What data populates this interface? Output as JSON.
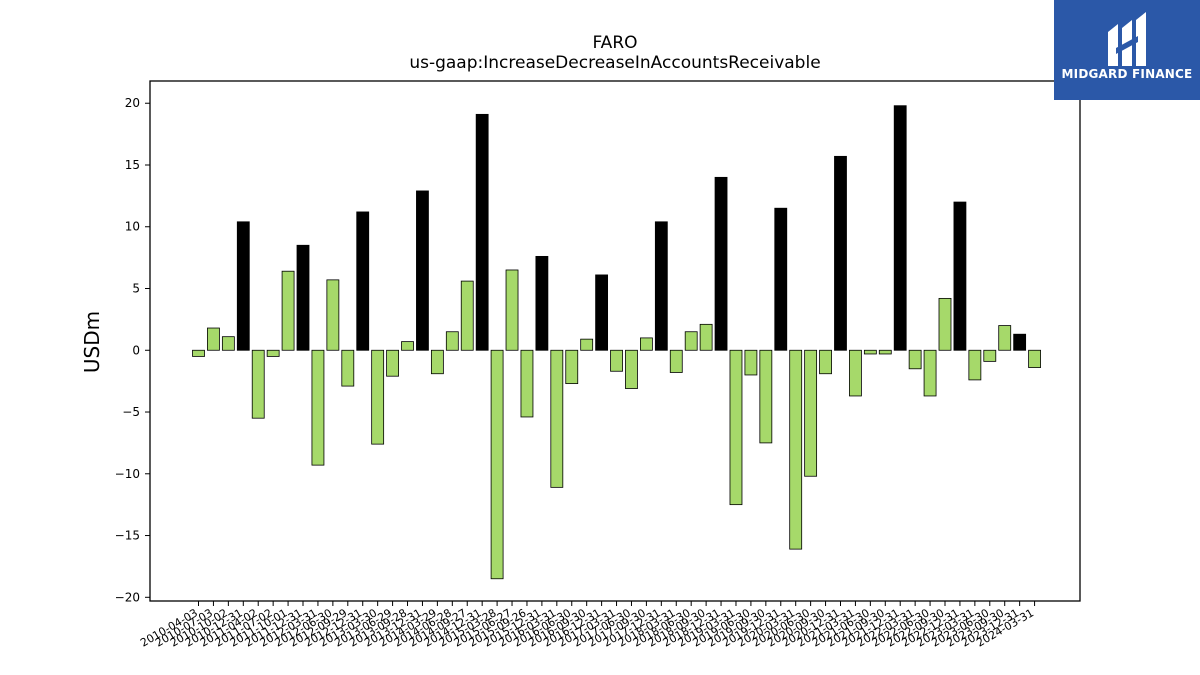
{
  "chart_data": {
    "type": "bar",
    "title": "FARO",
    "subtitle": "us-gaap:IncreaseDecreaseInAccountsReceivable",
    "ylabel": "USDm",
    "ylim": [
      -20.3,
      21.8
    ],
    "yticks": [
      -20,
      -15,
      -10,
      -5,
      0,
      5,
      10,
      15,
      20
    ],
    "grid": false,
    "colors": {
      "quarter": "#a6d96a",
      "annual": "#000000",
      "edge": "#000000"
    },
    "categories": [
      "2010-04-03",
      "2010-07-03",
      "2010-10-02",
      "2010-12-31",
      "2011-04-02",
      "2011-07-02",
      "2011-10-01",
      "2011-12-31",
      "2012-03-31",
      "2012-06-30",
      "2012-09-29",
      "2012-12-31",
      "2013-03-30",
      "2013-06-29",
      "2013-09-28",
      "2013-12-31",
      "2014-03-29",
      "2014-06-28",
      "2014-09-27",
      "2014-12-31",
      "2015-03-28",
      "2015-06-27",
      "2015-09-26",
      "2015-12-31",
      "2016-03-31",
      "2016-06-30",
      "2016-09-30",
      "2016-12-31",
      "2017-03-31",
      "2017-06-30",
      "2017-09-30",
      "2017-12-31",
      "2018-03-31",
      "2018-06-30",
      "2018-09-30",
      "2018-12-31",
      "2019-03-31",
      "2019-06-30",
      "2019-09-30",
      "2019-12-31",
      "2020-03-31",
      "2020-06-30",
      "2020-09-30",
      "2020-12-31",
      "2021-03-31",
      "2021-06-30",
      "2021-09-30",
      "2021-12-31",
      "2022-03-31",
      "2022-06-30",
      "2022-09-30",
      "2022-12-31",
      "2023-03-31",
      "2023-06-30",
      "2023-09-30",
      "2023-12-31",
      "2024-03-31"
    ],
    "values": [
      -0.5,
      1.8,
      1.1,
      10.4,
      -5.5,
      -0.5,
      6.4,
      8.5,
      -9.3,
      5.7,
      -2.9,
      11.2,
      -7.6,
      -2.1,
      0.7,
      12.9,
      -1.9,
      1.5,
      5.6,
      19.1,
      -18.5,
      6.5,
      -5.4,
      7.6,
      -11.1,
      -2.7,
      0.9,
      6.1,
      -1.7,
      -3.1,
      1.0,
      10.4,
      -1.8,
      1.5,
      2.1,
      14.0,
      -12.5,
      -2.0,
      -7.5,
      11.5,
      -16.1,
      -10.2,
      -1.9,
      15.7,
      -3.7,
      -0.3,
      -0.3,
      19.8,
      -1.5,
      -3.7,
      4.2,
      12.0,
      -2.4,
      -0.9,
      2.0,
      1.3,
      -1.4
    ],
    "is_annual": [
      false,
      false,
      false,
      true,
      false,
      false,
      false,
      true,
      false,
      false,
      false,
      true,
      false,
      false,
      false,
      true,
      false,
      false,
      false,
      true,
      false,
      false,
      false,
      true,
      false,
      false,
      false,
      true,
      false,
      false,
      false,
      true,
      false,
      false,
      false,
      true,
      false,
      false,
      false,
      true,
      false,
      false,
      false,
      true,
      false,
      false,
      false,
      true,
      false,
      false,
      false,
      true,
      false,
      false,
      false,
      true,
      false
    ]
  },
  "logo": {
    "text": "MIDGARD FINANCE",
    "background": "#2b58a8",
    "icon": "midgard-logo-icon"
  }
}
